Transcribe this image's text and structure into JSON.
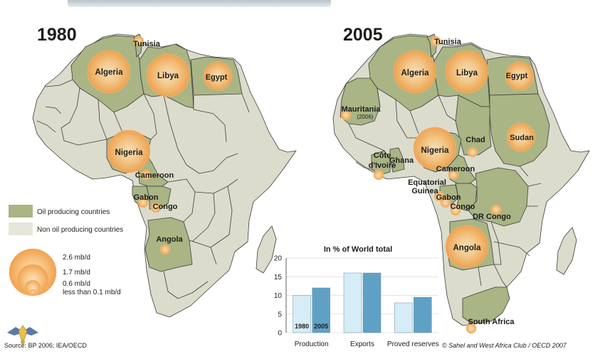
{
  "colors": {
    "oil": "#a9b584",
    "non_oil": "#dcdccd",
    "border": "#3c3c3c",
    "circle_inner": "#fbe2bd",
    "circle_outer": "#f0a24e",
    "bar_1980": "#d6ecf7",
    "bar_2005": "#5fa1c4"
  },
  "maps": [
    {
      "year": "1980",
      "labels": [
        "Tunisia",
        "Algeria",
        "Libya",
        "Egypt",
        "Nigeria",
        "Cameroon",
        "Gabon",
        "Congo",
        "Angola"
      ],
      "production_circles": [
        {
          "country": "Algeria",
          "size": "large"
        },
        {
          "country": "Libya",
          "size": "large"
        },
        {
          "country": "Egypt",
          "size": "medium"
        },
        {
          "country": "Nigeria",
          "size": "large"
        },
        {
          "country": "Tunisia",
          "size": "small"
        },
        {
          "country": "Cameroon",
          "size": "small"
        },
        {
          "country": "Gabon",
          "size": "small"
        },
        {
          "country": "Congo",
          "size": "small"
        },
        {
          "country": "Angola",
          "size": "small"
        }
      ]
    },
    {
      "year": "2005",
      "labels": [
        "Tunisia",
        "Algeria",
        "Libya",
        "Egypt",
        "Mauritania",
        "(2006)",
        "Chad",
        "Sudan",
        "Nigeria",
        "Côte",
        "d'Ivoire",
        "Ghana",
        "Cameroon",
        "Equatorial",
        "Guinea",
        "Gabon",
        "Congo",
        "DR Congo",
        "Angola",
        "South Africa"
      ],
      "production_circles": [
        {
          "country": "Algeria",
          "size": "large"
        },
        {
          "country": "Libya",
          "size": "large"
        },
        {
          "country": "Egypt",
          "size": "medium"
        },
        {
          "country": "Nigeria",
          "size": "large"
        },
        {
          "country": "Angola",
          "size": "large"
        },
        {
          "country": "Sudan",
          "size": "medium"
        },
        {
          "country": "Chad",
          "size": "small"
        },
        {
          "country": "Mauritania",
          "size": "small"
        },
        {
          "country": "Côte d'Ivoire",
          "size": "small"
        },
        {
          "country": "Cameroon",
          "size": "small"
        },
        {
          "country": "Equatorial Guinea",
          "size": "small"
        },
        {
          "country": "Gabon",
          "size": "small"
        },
        {
          "country": "Congo",
          "size": "small"
        },
        {
          "country": "DR Congo",
          "size": "small"
        },
        {
          "country": "South Africa",
          "size": "small"
        },
        {
          "country": "Tunisia",
          "size": "small"
        }
      ]
    }
  ],
  "legend": {
    "oil_label": "Oil producing countries",
    "non_oil_label": "Non oil producing countries",
    "sizes": [
      "2.6 mb/d",
      "1.7 mb/d",
      "0.6 mb/d",
      "less than 0.1 mb/d"
    ]
  },
  "chart_data": {
    "type": "bar",
    "title": "In % of World total",
    "categories": [
      "Production",
      "Exports",
      "Proved reserves"
    ],
    "series": [
      {
        "name": "1980",
        "values": [
          10,
          16,
          8
        ]
      },
      {
        "name": "2005",
        "values": [
          12,
          16,
          9.5
        ]
      }
    ],
    "ylim": [
      0,
      20
    ],
    "yticks": [
      0,
      5,
      10,
      15,
      20
    ],
    "grid": true
  },
  "credits": {
    "source": "Source: BP 2006; IEA/OECD",
    "copyright": "© Sahel and West Africa Club / OECD 2007"
  }
}
